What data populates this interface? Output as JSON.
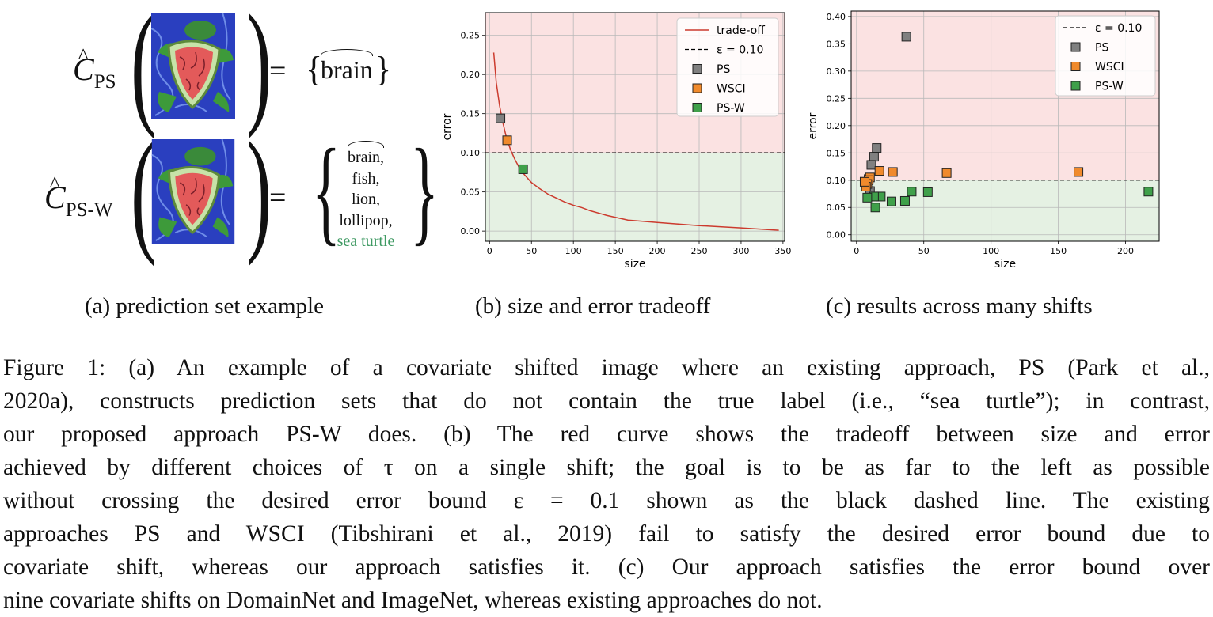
{
  "panel_a": {
    "row1": {
      "symbol": "C",
      "subscript": "PS",
      "equals": "=",
      "set": [
        "brain"
      ]
    },
    "row2": {
      "symbol": "C",
      "subscript": "PS-W",
      "equals": "=",
      "set": [
        "brain,",
        "fish,",
        "lion,",
        "lollipop,",
        "sea turtle"
      ]
    },
    "true_label_color": "#3f9a63",
    "image_icon": "sea-turtle-painting"
  },
  "subcaptions": {
    "a": "(a) prediction set example",
    "b": "(b) size and error tradeoff",
    "c": "(c) results across many shifts"
  },
  "chart_data": [
    {
      "type": "line",
      "xlabel": "size",
      "ylabel": "error",
      "xlim": [
        -5,
        352
      ],
      "ylim": [
        -0.013,
        0.279
      ],
      "xticks": [
        0,
        50,
        100,
        150,
        200,
        250,
        300,
        350
      ],
      "yticks": [
        0.0,
        0.05,
        0.1,
        0.15,
        0.2,
        0.25
      ],
      "ytick_labels": [
        "0.00",
        "0.05",
        "0.10",
        "0.15",
        "0.20",
        "0.25"
      ],
      "grid": true,
      "legend_position": "upper right",
      "threshold": 0.1,
      "threshold_label": "ε = 0.10",
      "regions": {
        "above_color": "#fbe2e2",
        "below_color": "#e5f1e3"
      },
      "series": [
        {
          "name": "trade-off",
          "kind": "line",
          "color": "#cc3b2e",
          "x": [
            5,
            8,
            12,
            16,
            20,
            25,
            30,
            35,
            40,
            50,
            60,
            70,
            80,
            90,
            100,
            110,
            120,
            140,
            165,
            200,
            250,
            300,
            345
          ],
          "y": [
            0.228,
            0.19,
            0.16,
            0.138,
            0.12,
            0.104,
            0.092,
            0.082,
            0.074,
            0.062,
            0.054,
            0.047,
            0.042,
            0.037,
            0.033,
            0.03,
            0.026,
            0.02,
            0.014,
            0.011,
            0.007,
            0.004,
            0.001
          ]
        },
        {
          "name": "PS",
          "kind": "marker",
          "color": "#808080",
          "x": [
            13
          ],
          "y": [
            0.144
          ]
        },
        {
          "name": "WSCI",
          "kind": "marker",
          "color": "#f08a2c",
          "x": [
            21
          ],
          "y": [
            0.116
          ]
        },
        {
          "name": "PS-W",
          "kind": "marker",
          "color": "#3fa04a",
          "x": [
            40
          ],
          "y": [
            0.079
          ]
        }
      ]
    },
    {
      "type": "scatter",
      "xlabel": "size",
      "ylabel": "error",
      "xlim": [
        -4,
        225
      ],
      "ylim": [
        -0.012,
        0.41
      ],
      "xticks": [
        0,
        50,
        100,
        150,
        200
      ],
      "yticks": [
        0.0,
        0.05,
        0.1,
        0.15,
        0.2,
        0.25,
        0.3,
        0.35,
        0.4
      ],
      "ytick_labels": [
        "0.00",
        "0.05",
        "0.10",
        "0.15",
        "0.20",
        "0.25",
        "0.30",
        "0.35",
        "0.40"
      ],
      "grid": true,
      "legend_position": "upper right",
      "threshold": 0.1,
      "threshold_label": "ε = 0.10",
      "regions": {
        "above_color": "#fbe2e2",
        "below_color": "#e5f1e3"
      },
      "series": [
        {
          "name": "PS",
          "color": "#808080",
          "x": [
            37,
            15,
            13,
            11,
            9,
            8,
            7,
            6,
            10
          ],
          "y": [
            0.363,
            0.159,
            0.143,
            0.128,
            0.102,
            0.095,
            0.09,
            0.097,
            0.08
          ]
        },
        {
          "name": "WSCI",
          "color": "#f08a2c",
          "x": [
            165,
            67,
            27,
            17,
            10,
            9,
            8,
            7,
            6
          ],
          "y": [
            0.115,
            0.113,
            0.115,
            0.117,
            0.105,
            0.1,
            0.093,
            0.088,
            0.097
          ]
        },
        {
          "name": "PS-W",
          "color": "#3fa04a",
          "x": [
            217,
            53,
            41,
            36,
            26,
            18,
            14,
            13,
            8
          ],
          "y": [
            0.079,
            0.078,
            0.079,
            0.062,
            0.061,
            0.07,
            0.05,
            0.07,
            0.068
          ]
        }
      ]
    }
  ],
  "figure_caption": [
    "Figure 1: (a) An example of a covariate shifted image where an existing approach, PS (Park et al.,",
    "2020a), constructs prediction sets that do not contain the true label (i.e., “sea turtle”); in contrast,",
    "our proposed approach PS-W does.  (b) The red curve shows the tradeoff between size and error",
    "achieved by different choices of τ on a single shift; the goal is to be as far to the left as possible",
    "without crossing the desired error bound ε = 0.1 shown as the black dashed line.  The existing",
    "approaches PS and WSCI (Tibshirani et al., 2019) fail to satisfy the desired error bound due to",
    "covariate shift, whereas our approach satisfies it.  (c) Our approach satisfies the error bound over",
    "nine covariate shifts on DomainNet and ImageNet, whereas existing approaches do not."
  ]
}
